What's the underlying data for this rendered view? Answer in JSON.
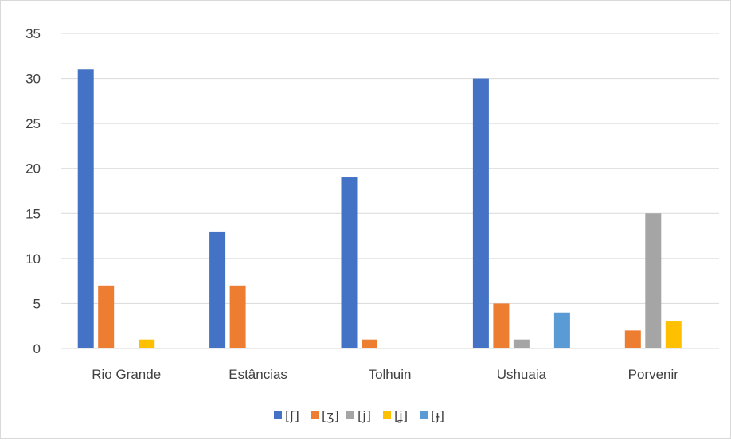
{
  "chart_data": {
    "type": "bar",
    "title": "",
    "xlabel": "",
    "ylabel": "",
    "categories": [
      "Rio Grande",
      "Estâncias",
      "Tolhuin",
      "Ushuaia",
      "Porvenir"
    ],
    "ylim": [
      0,
      35
    ],
    "yticks": [
      0,
      5,
      10,
      15,
      20,
      25,
      30,
      35
    ],
    "grid": true,
    "legend_position": "bottom",
    "series": [
      {
        "name": "[ʃ]",
        "color": "#4472c4",
        "values": [
          31,
          13,
          19,
          30,
          0
        ]
      },
      {
        "name": "[ʒ]",
        "color": "#ed7d31",
        "values": [
          7,
          7,
          1,
          5,
          2
        ]
      },
      {
        "name": "[j]",
        "color": "#a5a5a5",
        "values": [
          0,
          0,
          0,
          1,
          15
        ]
      },
      {
        "name": "[ʝ]",
        "color": "#ffc000",
        "values": [
          1,
          0,
          0,
          0,
          3
        ]
      },
      {
        "name": "[ɟ]",
        "color": "#5b9bd5",
        "values": [
          0,
          0,
          0,
          4,
          0
        ]
      }
    ]
  }
}
